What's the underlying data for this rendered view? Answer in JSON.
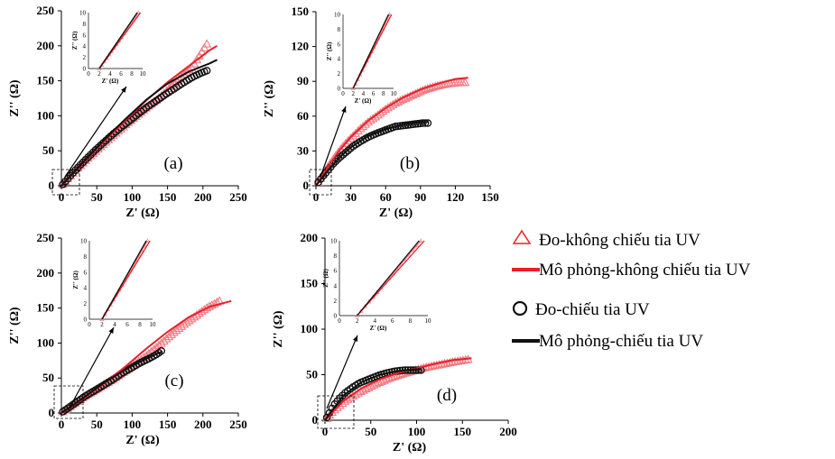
{
  "colors": {
    "not_uv": "#e8202a",
    "uv": "#111111",
    "not_uv_marker": "#f07a82"
  },
  "legend": [
    {
      "label": "Đo-không chiếu tia UV",
      "marker": "triangle",
      "color": "#e8202a"
    },
    {
      "label": "Mô phỏng-không chiếu tia UV",
      "marker": "line",
      "color": "#e8202a"
    },
    {
      "label": "Đo-chiếu tia UV",
      "marker": "circle",
      "color": "#111111"
    },
    {
      "label": "Mô phỏng-chiếu tia UV",
      "marker": "line",
      "color": "#111111"
    }
  ],
  "chart_data": [
    {
      "type": "scatter",
      "panel_label": "(a)",
      "xlabel": "Z' (Ω)",
      "ylabel": "Z'' (Ω)",
      "xlim": [
        0,
        250
      ],
      "ylim": [
        0,
        250
      ],
      "xticks": [
        0,
        50,
        100,
        150,
        200,
        250
      ],
      "yticks": [
        0,
        50,
        100,
        150,
        200,
        250
      ],
      "series": [
        {
          "x": [
            2,
            8,
            16,
            26,
            36,
            48,
            60,
            72,
            85,
            98,
            110,
            122,
            135,
            148,
            160,
            172,
            185,
            207
          ],
          "y": [
            2,
            9,
            18,
            28,
            38,
            49,
            60,
            71,
            82,
            93,
            103,
            113,
            123,
            135,
            147,
            158,
            170,
            205
          ]
        },
        {
          "x": [
            0,
            30,
            60,
            90,
            120,
            150,
            180,
            210,
            220
          ],
          "y": [
            0,
            32,
            63,
            93,
            122,
            148,
            171,
            194,
            200
          ]
        },
        {
          "x": [
            2,
            8,
            16,
            26,
            36,
            48,
            60,
            72,
            85,
            98,
            110,
            122,
            135,
            148,
            160,
            172,
            185,
            197,
            207
          ],
          "y": [
            2,
            9,
            18,
            29,
            39,
            51,
            62,
            73,
            84,
            94,
            104,
            113,
            122,
            131,
            139,
            147,
            155,
            161,
            165
          ]
        },
        {
          "x": [
            0,
            30,
            60,
            90,
            120,
            150,
            180,
            210,
            220
          ],
          "y": [
            0,
            33,
            65,
            95,
            123,
            146,
            163,
            175,
            180
          ]
        }
      ],
      "inset": {
        "xlim": [
          0,
          10
        ],
        "ylim": [
          0,
          10
        ],
        "xticks": [
          0,
          2,
          4,
          6,
          8,
          10
        ],
        "yticks": [
          0,
          2,
          4,
          6,
          8,
          10
        ],
        "xlabel": "Z' (Ω)",
        "ylabel": "Z'' (Ω)"
      }
    },
    {
      "type": "scatter",
      "panel_label": "(b)",
      "xlabel": "Z' (Ω)",
      "ylabel": "Z'' (Ω)",
      "xlim": [
        0,
        150
      ],
      "ylim": [
        0,
        150
      ],
      "xticks": [
        0,
        30,
        60,
        90,
        120,
        150
      ],
      "yticks": [
        0,
        30,
        60,
        90,
        120,
        150
      ],
      "series": [
        {
          "x": [
            2,
            5,
            10,
            15,
            20,
            26,
            32,
            38,
            45,
            52,
            60,
            68,
            76,
            85,
            94,
            104,
            114,
            124,
            130
          ],
          "y": [
            3,
            8,
            16,
            23,
            30,
            37,
            43,
            49,
            55,
            60,
            66,
            71,
            75,
            79,
            83,
            86,
            88,
            89,
            89
          ]
        },
        {
          "x": [
            0,
            10,
            20,
            30,
            45,
            60,
            75,
            90,
            105,
            120,
            131
          ],
          "y": [
            0,
            16,
            30,
            42,
            56,
            67,
            76,
            83,
            88,
            92,
            93
          ]
        },
        {
          "x": [
            2,
            5,
            10,
            15,
            20,
            26,
            32,
            38,
            45,
            52,
            60,
            68,
            76,
            84,
            92,
            97
          ],
          "y": [
            3,
            7,
            13,
            19,
            24,
            29,
            34,
            38,
            42,
            45,
            48,
            51,
            52,
            53,
            54,
            54
          ]
        },
        {
          "x": [
            0,
            10,
            20,
            30,
            45,
            60,
            75,
            90,
            97
          ],
          "y": [
            0,
            13,
            24,
            33,
            43,
            49,
            53,
            55,
            55
          ]
        }
      ],
      "inset": {
        "xlim": [
          0,
          10
        ],
        "ylim": [
          0,
          10
        ],
        "xticks": [
          0,
          2,
          4,
          6,
          8,
          10
        ],
        "yticks": [
          0,
          2,
          4,
          6,
          8,
          10
        ],
        "xlabel": "Z' (Ω)",
        "ylabel": "Z'' (Ω)"
      }
    },
    {
      "type": "scatter",
      "panel_label": "(c)",
      "xlabel": "Z' (Ω)",
      "ylabel": "Z'' (Ω)",
      "xlim": [
        0,
        250
      ],
      "ylim": [
        0,
        250
      ],
      "xticks": [
        0,
        50,
        100,
        150,
        200,
        250
      ],
      "yticks": [
        0,
        50,
        100,
        150,
        200,
        250
      ],
      "series": [
        {
          "x": [
            2,
            8,
            15,
            25,
            35,
            47,
            60,
            73,
            86,
            100,
            115,
            130,
            145,
            160,
            175,
            190,
            205,
            225
          ],
          "y": [
            2,
            6,
            11,
            18,
            25,
            32,
            40,
            48,
            57,
            67,
            78,
            90,
            103,
            116,
            128,
            139,
            150,
            161
          ]
        },
        {
          "x": [
            0,
            30,
            60,
            90,
            120,
            150,
            180,
            210,
            240
          ],
          "y": [
            0,
            20,
            42,
            66,
            92,
            116,
            137,
            152,
            160
          ]
        },
        {
          "x": [
            2,
            8,
            15,
            25,
            35,
            47,
            60,
            73,
            86,
            100,
            112,
            124,
            135,
            143
          ],
          "y": [
            2,
            6,
            11,
            18,
            25,
            32,
            40,
            48,
            57,
            65,
            72,
            78,
            84,
            90
          ]
        },
        {
          "x": [
            0,
            30,
            60,
            90,
            120,
            143
          ],
          "y": [
            0,
            21,
            43,
            62,
            78,
            88
          ]
        }
      ],
      "inset": {
        "xlim": [
          0,
          10
        ],
        "ylim": [
          0,
          10
        ],
        "xticks": [
          0,
          2,
          4,
          6,
          8,
          10
        ],
        "yticks": [
          0,
          2,
          4,
          6,
          8,
          10
        ],
        "xlabel": "",
        "ylabel": "Z'' (Ω)"
      }
    },
    {
      "type": "scatter",
      "panel_label": "(d)",
      "xlabel": "Z' (Ω)",
      "ylabel": "Z'' (Ω)",
      "xlim": [
        0,
        200
      ],
      "ylim": [
        0,
        200
      ],
      "xticks": [
        0,
        50,
        100,
        150,
        200
      ],
      "yticks": [
        0,
        50,
        100,
        150,
        200
      ],
      "series": [
        {
          "x": [
            2,
            6,
            10,
            16,
            22,
            30,
            38,
            48,
            58,
            70,
            82,
            95,
            110,
            125,
            140,
            158
          ],
          "y": [
            2,
            7,
            11,
            16,
            21,
            26,
            31,
            36,
            41,
            46,
            50,
            54,
            58,
            61,
            64,
            67
          ]
        },
        {
          "x": [
            0,
            20,
            40,
            60,
            80,
            100,
            120,
            140,
            160
          ],
          "y": [
            0,
            21,
            35,
            45,
            52,
            57,
            62,
            66,
            68
          ]
        },
        {
          "x": [
            2,
            6,
            10,
            16,
            22,
            30,
            38,
            48,
            58,
            68,
            78,
            88,
            98,
            105
          ],
          "y": [
            3,
            10,
            17,
            24,
            30,
            36,
            41,
            45,
            49,
            52,
            54,
            55,
            55,
            55
          ]
        },
        {
          "x": [
            0,
            20,
            40,
            60,
            80,
            100,
            105
          ],
          "y": [
            0,
            27,
            42,
            50,
            54,
            56,
            56
          ]
        }
      ],
      "inset": {
        "xlim": [
          0,
          10
        ],
        "ylim": [
          0,
          10
        ],
        "xticks": [
          0,
          2,
          4,
          6,
          8,
          10
        ],
        "yticks": [
          0,
          2,
          4,
          6,
          8,
          10
        ],
        "xlabel": "Z' (Ω)",
        "ylabel": "Z'' (Ω)"
      }
    }
  ]
}
